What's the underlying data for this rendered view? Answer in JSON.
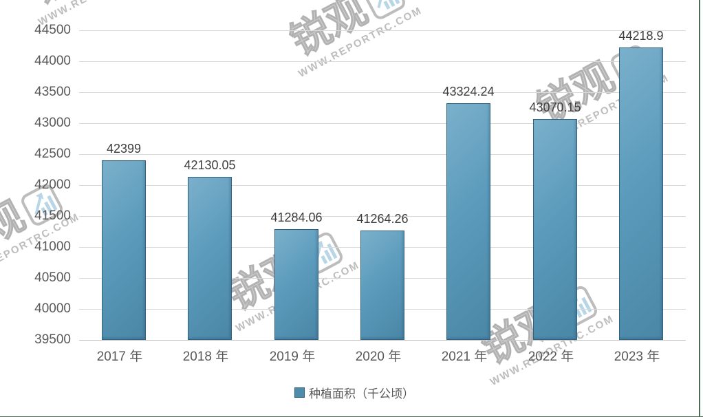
{
  "chart_data": {
    "type": "bar",
    "categories": [
      "2017 年",
      "2018 年",
      "2019 年",
      "2020 年",
      "2021 年",
      "2022 年",
      "2023 年"
    ],
    "values": [
      42399,
      42130.05,
      41284.06,
      41264.26,
      43324.24,
      43070.15,
      44218.9
    ],
    "value_labels": [
      "42399",
      "42130.05",
      "41284.06",
      "41264.26",
      "43324.24",
      "43070.15",
      "44218.9"
    ],
    "title": "",
    "xlabel": "",
    "ylabel": "",
    "ylim": [
      39500,
      44500
    ],
    "ytick_step": 500,
    "grid": true,
    "legend": "种植面积（千公顷）",
    "legend_position": "bottom",
    "bar_color": "#5c9bbc",
    "bar_border_color": "#2f617f",
    "gridline_color": "#d9d9d9",
    "axis_text_color": "#595959"
  },
  "legend": {
    "label": "种植面积（千公顷）"
  },
  "watermark": {
    "brand": "锐观",
    "url": "WWW.REPORTRC.COM"
  },
  "colors": {
    "accent_green_line": "#4e6b55",
    "bar_fill": "#5c9bbc",
    "bar_border": "#2f617f",
    "label_text": "#3d3d3d",
    "axis_text": "#595959",
    "watermark_gray": "#bababa",
    "watermark_blue": "#b9d6e6"
  }
}
